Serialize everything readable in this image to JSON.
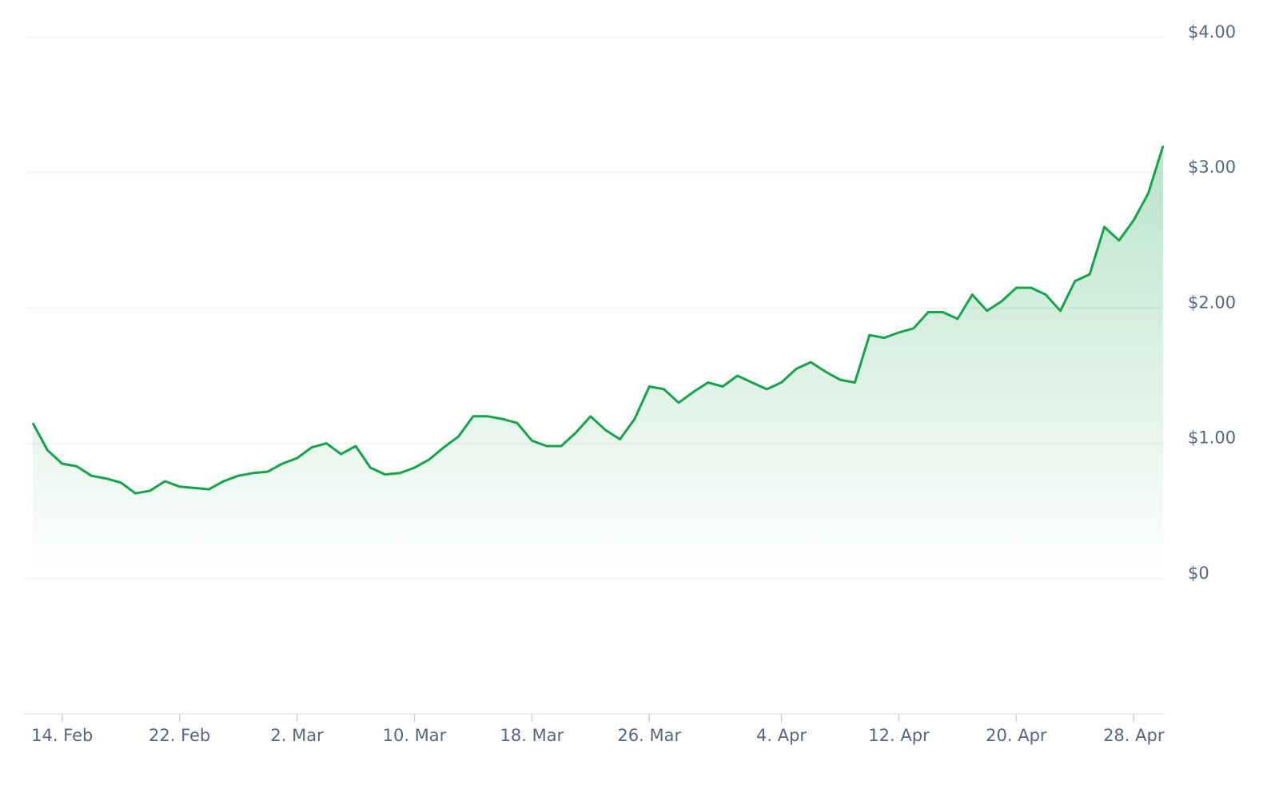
{
  "chart_data": {
    "type": "area-line",
    "x": [
      "12. Feb",
      "13. Feb",
      "14. Feb",
      "15. Feb",
      "16. Feb",
      "17. Feb",
      "18. Feb",
      "19. Feb",
      "20. Feb",
      "21. Feb",
      "22. Feb",
      "23. Feb",
      "24. Feb",
      "25. Feb",
      "26. Feb",
      "27. Feb",
      "28. Feb",
      "1. Mar",
      "2. Mar",
      "3. Mar",
      "4. Mar",
      "5. Mar",
      "6. Mar",
      "7. Mar",
      "8. Mar",
      "9. Mar",
      "10. Mar",
      "11. Mar",
      "12. Mar",
      "13. Mar",
      "14. Mar",
      "15. Mar",
      "16. Mar",
      "17. Mar",
      "18. Mar",
      "19. Mar",
      "20. Mar",
      "21. Mar",
      "22. Mar",
      "23. Mar",
      "24. Mar",
      "25. Mar",
      "26. Mar",
      "27. Mar",
      "28. Mar",
      "29. Mar",
      "30. Mar",
      "31. Mar",
      "1. Apr",
      "2. Apr",
      "3. Apr",
      "4. Apr",
      "5. Apr",
      "6. Apr",
      "7. Apr",
      "8. Apr",
      "9. Apr",
      "10. Apr",
      "11. Apr",
      "12. Apr",
      "13. Apr",
      "14. Apr",
      "15. Apr",
      "16. Apr",
      "17. Apr",
      "18. Apr",
      "19. Apr",
      "20. Apr",
      "21. Apr",
      "22. Apr",
      "23. Apr",
      "24. Apr",
      "25. Apr",
      "26. Apr",
      "27. Apr",
      "28. Apr",
      "29. Apr",
      "30. Apr"
    ],
    "values": [
      1.15,
      0.95,
      0.85,
      0.83,
      0.76,
      0.74,
      0.71,
      0.63,
      0.65,
      0.72,
      0.68,
      0.67,
      0.66,
      0.72,
      0.76,
      0.78,
      0.79,
      0.85,
      0.89,
      0.97,
      1.0,
      0.92,
      0.98,
      0.82,
      0.77,
      0.78,
      0.82,
      0.88,
      0.97,
      1.05,
      1.2,
      1.2,
      1.18,
      1.15,
      1.02,
      0.98,
      0.98,
      1.08,
      1.2,
      1.1,
      1.03,
      1.18,
      1.42,
      1.4,
      1.3,
      1.38,
      1.45,
      1.42,
      1.5,
      1.45,
      1.4,
      1.45,
      1.55,
      1.6,
      1.53,
      1.47,
      1.45,
      1.8,
      1.78,
      1.82,
      1.85,
      1.97,
      1.97,
      1.92,
      2.1,
      1.98,
      2.05,
      2.15,
      2.15,
      2.1,
      1.98,
      2.2,
      2.25,
      2.6,
      2.5,
      2.65,
      2.85,
      3.2
    ],
    "color": "#16a34a",
    "xticks": [
      "14. Feb",
      "22. Feb",
      "2. Mar",
      "10. Mar",
      "18. Mar",
      "26. Mar",
      "4. Apr",
      "12. Apr",
      "20. Apr",
      "28. Apr"
    ],
    "ylim": [
      -1,
      4
    ],
    "yticks": [
      {
        "value": 0,
        "label": "$0"
      },
      {
        "value": 1,
        "label": "$1.00"
      },
      {
        "value": 2,
        "label": "$2.00"
      },
      {
        "value": 3,
        "label": "$3.00"
      },
      {
        "value": 4,
        "label": "$4.00"
      }
    ],
    "grid": true
  }
}
